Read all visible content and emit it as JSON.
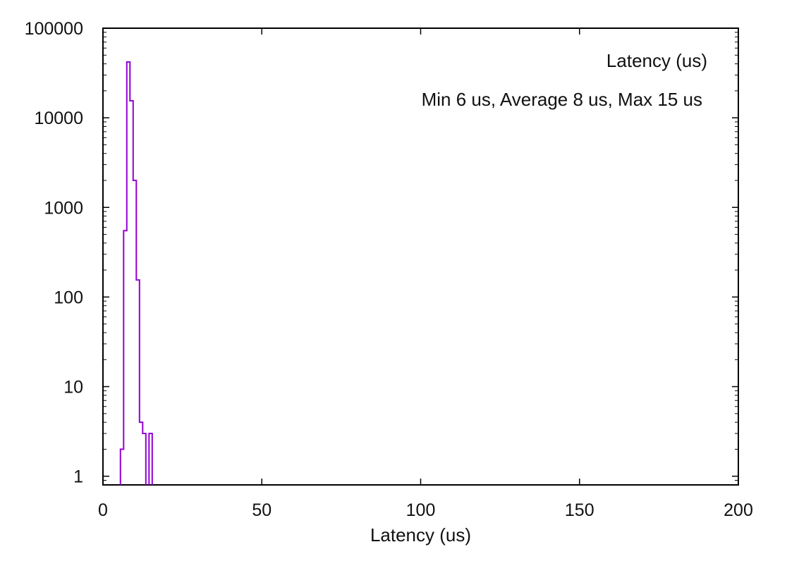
{
  "chart_data": {
    "type": "histogram",
    "title": "",
    "xlabel": "Latency (us)",
    "ylabel": "",
    "xlim": [
      0,
      200
    ],
    "ylim": [
      0.8,
      100000
    ],
    "yscale": "log",
    "grid": false,
    "legend_position": "top-right",
    "xticks": [
      0,
      50,
      100,
      150,
      200
    ],
    "xtick_labels": [
      "0",
      "50",
      "100",
      "150",
      "200"
    ],
    "yticks": [
      1,
      10,
      100,
      1000,
      10000,
      100000
    ],
    "ytick_labels": [
      "1",
      "10",
      "100",
      "1000",
      "10000",
      "100000"
    ],
    "series": [
      {
        "name": "Latency (us)",
        "color": "#9400d3",
        "bins": [
          {
            "x": 6,
            "count": 2
          },
          {
            "x": 7,
            "count": 550
          },
          {
            "x": 8,
            "count": 42000
          },
          {
            "x": 9,
            "count": 15500
          },
          {
            "x": 10,
            "count": 2000
          },
          {
            "x": 11,
            "count": 155
          },
          {
            "x": 12,
            "count": 4
          },
          {
            "x": 13,
            "count": 3
          },
          {
            "x": 15,
            "count": 3
          }
        ]
      }
    ],
    "annotations": [
      "Min 6 us, Average 8 us, Max 15 us"
    ]
  }
}
